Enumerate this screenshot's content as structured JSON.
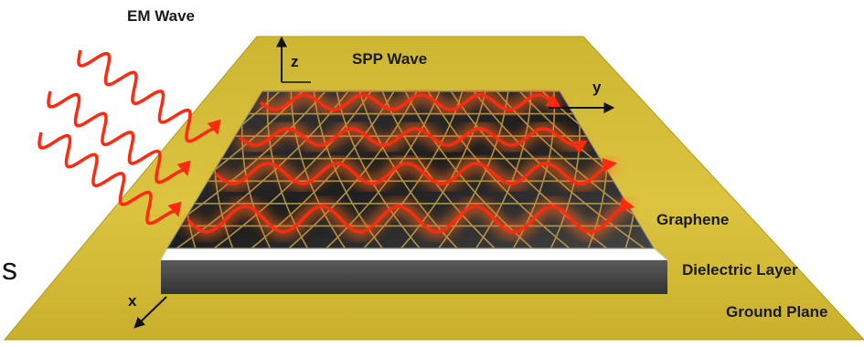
{
  "labels": {
    "em_wave": "EM Wave",
    "spp_wave": "SPP Wave",
    "graphene": "Graphene",
    "dielectric": "Dielectric Layer",
    "ground_plane": "Ground Plane",
    "axis_x": "x",
    "axis_y": "y",
    "axis_z": "z",
    "edge_fragment": "s"
  },
  "colors": {
    "ground_plane": "#d7c037",
    "ground_plane_edge": "#b39a1a",
    "graphene_sheet": "#2a2a2a",
    "lattice": "#c8a64a",
    "wave": "#ff2a10",
    "glow": "#ff6a1a",
    "dielectric_top": "#ffffff",
    "dielectric_front": "#4a4a4a"
  }
}
